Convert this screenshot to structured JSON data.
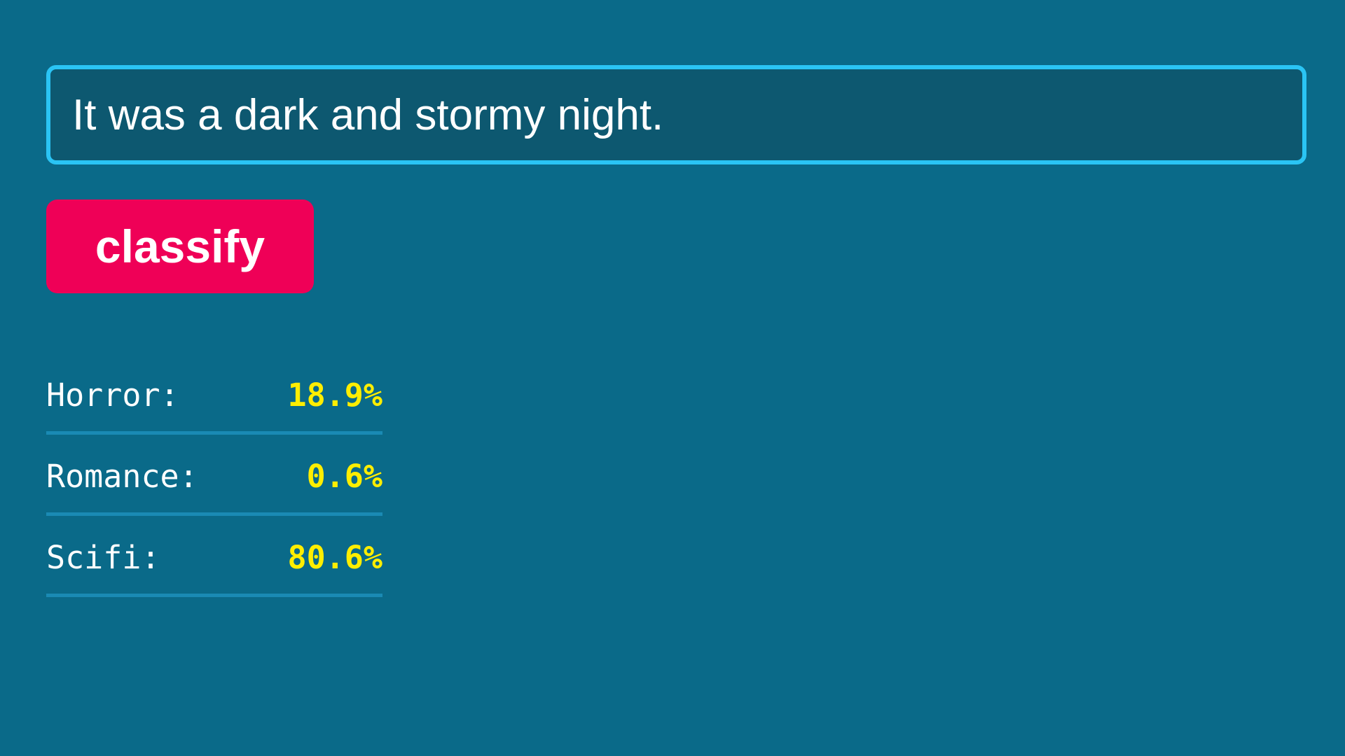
{
  "input": {
    "value": "It was a dark and stormy night."
  },
  "button": {
    "label": "classify"
  },
  "results": [
    {
      "label": "Horror:",
      "value": "18.9%"
    },
    {
      "label": "Romance:",
      "value": "0.6%"
    },
    {
      "label": "Scifi:",
      "value": "80.6%"
    }
  ],
  "colors": {
    "background": "#0a6a89",
    "input_border": "#2ac4f4",
    "button": "#ef0057",
    "value_text": "#ffee00",
    "divider": "#1a8ab4"
  }
}
